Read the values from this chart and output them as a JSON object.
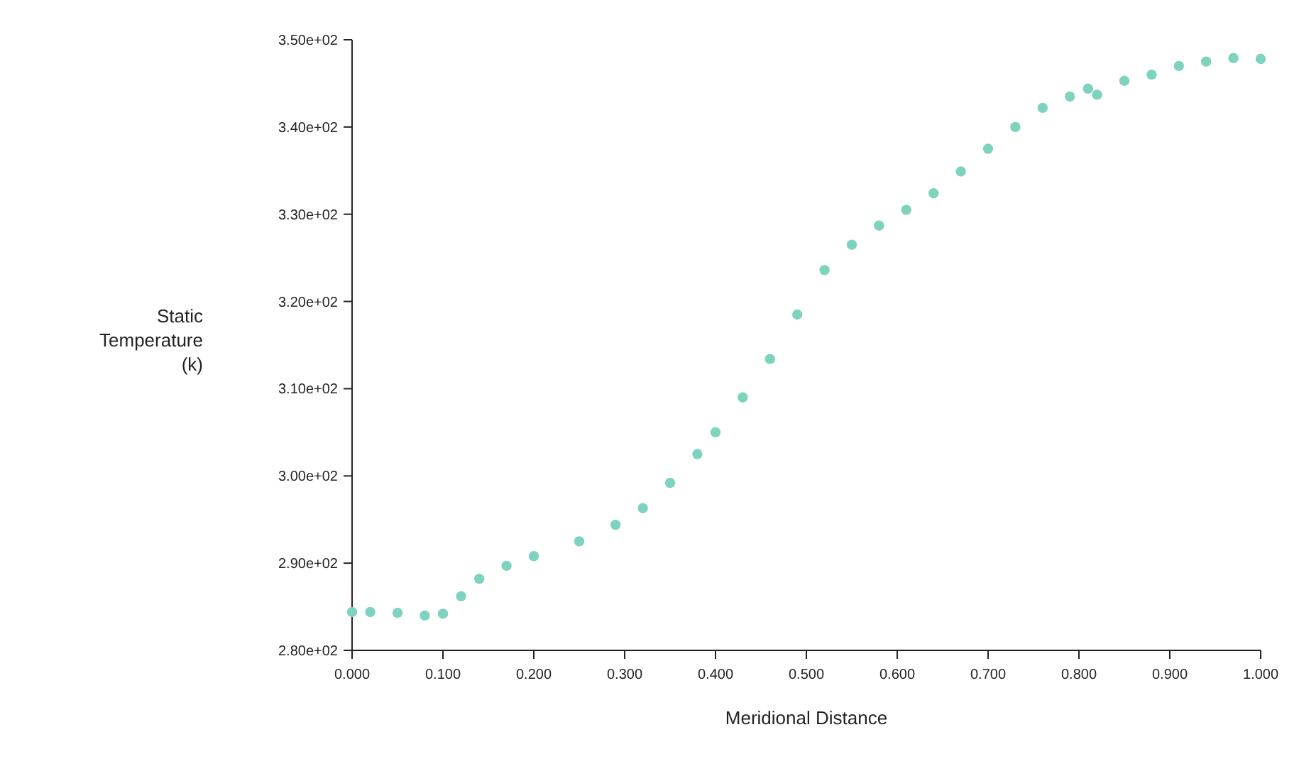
{
  "chart_data": {
    "type": "scatter",
    "xlabel": "Meridional Distance",
    "ylabel": "Static\nTemperature\n(k)",
    "marker": "circle",
    "grid": false,
    "xlim": [
      0,
      1
    ],
    "ylim": [
      280,
      350
    ],
    "xticks": [
      {
        "value": 0,
        "label": "0.000"
      },
      {
        "value": 0.1,
        "label": "0.100"
      },
      {
        "value": 0.2,
        "label": "0.200"
      },
      {
        "value": 0.3,
        "label": "0.300"
      },
      {
        "value": 0.4,
        "label": "0.400"
      },
      {
        "value": 0.5,
        "label": "0.500"
      },
      {
        "value": 0.6,
        "label": "0.600"
      },
      {
        "value": 0.7,
        "label": "0.700"
      },
      {
        "value": 0.8,
        "label": "0.800"
      },
      {
        "value": 0.9,
        "label": "0.900"
      },
      {
        "value": 1,
        "label": "1.000"
      }
    ],
    "yticks": [
      {
        "value": 280,
        "label": "2.80e+02"
      },
      {
        "value": 290,
        "label": "2.90e+02"
      },
      {
        "value": 300,
        "label": "3.00e+02"
      },
      {
        "value": 310,
        "label": "3.10e+02"
      },
      {
        "value": 320,
        "label": "3.20e+02"
      },
      {
        "value": 330,
        "label": "3.30e+02"
      },
      {
        "value": 340,
        "label": "3.40e+02"
      },
      {
        "value": 350,
        "label": "3.50e+02"
      }
    ],
    "series": [
      {
        "color": "#7dd3be",
        "x": [
          0,
          0.02,
          0.05,
          0.08,
          0.1,
          0.12,
          0.14,
          0.17,
          0.2,
          0.25,
          0.29,
          0.32,
          0.35,
          0.38,
          0.4,
          0.43,
          0.46,
          0.49,
          0.52,
          0.55,
          0.58,
          0.61,
          0.64,
          0.67,
          0.7,
          0.73,
          0.76,
          0.79,
          0.81,
          0.82,
          0.85,
          0.88,
          0.91,
          0.94,
          0.97,
          1
        ],
        "values": [
          284.4,
          284.4,
          284.3,
          284.0,
          284.2,
          286.2,
          288.2,
          289.7,
          290.8,
          292.5,
          294.4,
          296.3,
          299.2,
          302.5,
          305.0,
          309.0,
          313.4,
          318.5,
          323.6,
          326.5,
          328.7,
          330.5,
          332.4,
          334.9,
          337.5,
          340.0,
          342.2,
          343.5,
          344.4,
          343.7,
          345.3,
          346.0,
          347.0,
          347.5,
          347.9,
          347.8
        ]
      }
    ]
  }
}
